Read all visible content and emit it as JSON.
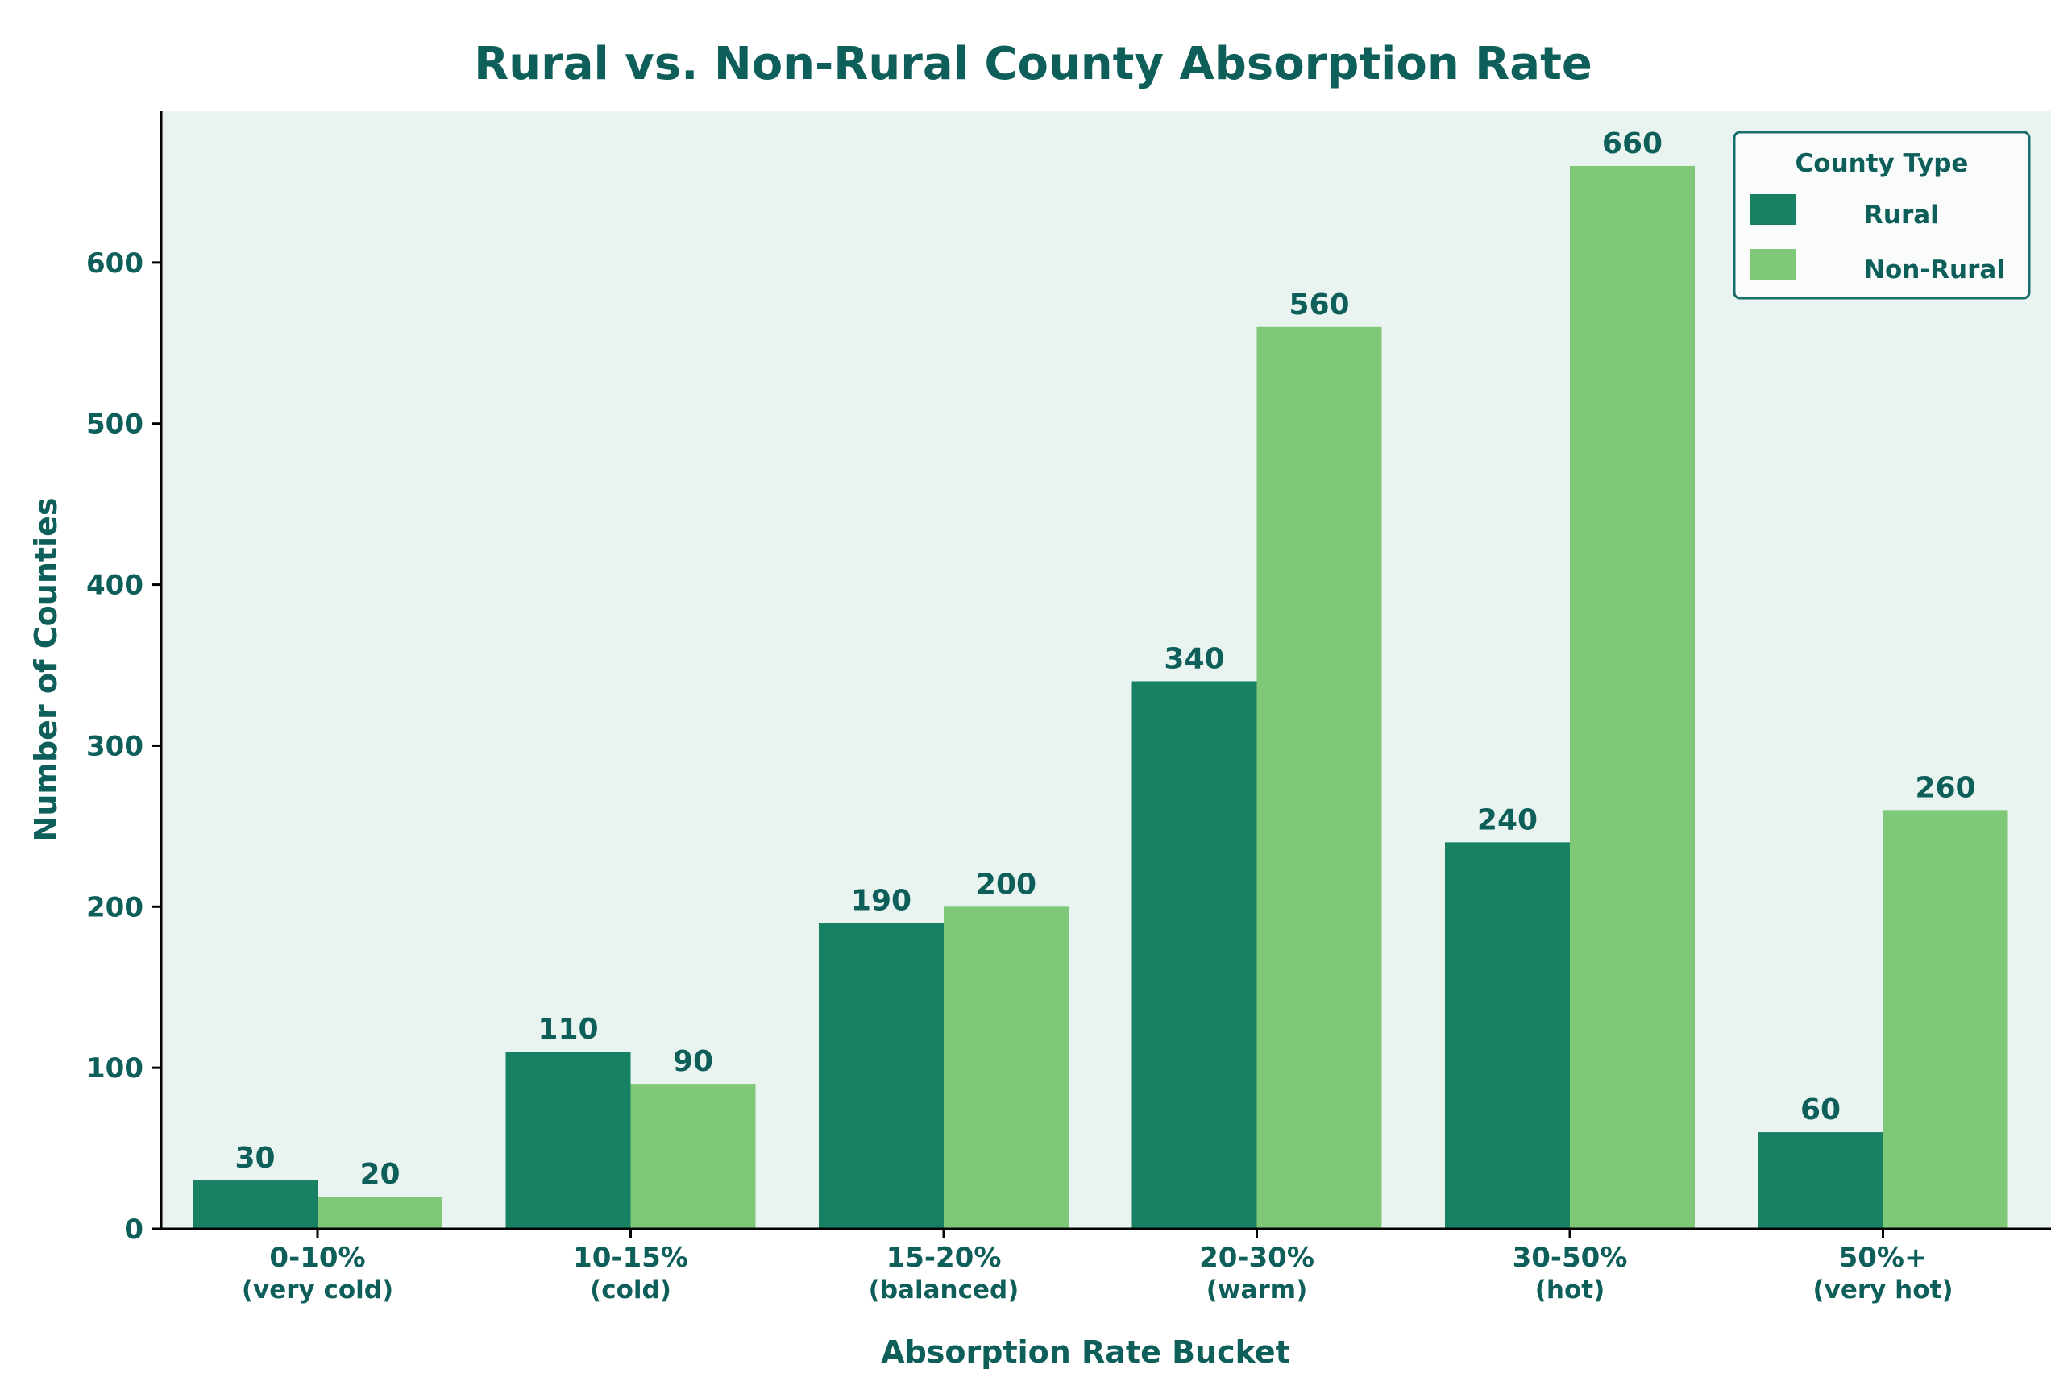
{
  "colors": {
    "text": "#0e5e5a",
    "plot_background": "#e9f4f0",
    "axis": "#000000",
    "rural": "#188063",
    "non_rural": "#7fc877",
    "legend_border": "#1a6e6a",
    "legend_background": "#f9fcfb"
  },
  "chart_data": {
    "type": "bar",
    "title": "Rural vs. Non-Rural County Absorption Rate",
    "xlabel": "Absorption Rate Bucket",
    "ylabel": "Number of Counties",
    "categories": [
      "0-10%",
      "10-15%",
      "15-20%",
      "20-30%",
      "30-50%",
      "50%+"
    ],
    "category_subtitles": [
      "(very cold)",
      "(cold)",
      "(balanced)",
      "(warm)",
      "(hot)",
      "(very hot)"
    ],
    "series": [
      {
        "name": "Rural",
        "values": [
          30,
          110,
          190,
          340,
          240,
          60
        ],
        "color": "#188063"
      },
      {
        "name": "Non-Rural",
        "values": [
          20,
          90,
          200,
          560,
          660,
          260
        ],
        "color": "#7fc877"
      }
    ],
    "yticks": [
      0,
      100,
      200,
      300,
      400,
      500,
      600
    ],
    "ylim": [
      0,
      694
    ],
    "grid": false,
    "legend": {
      "title": "County Type",
      "position": "top-right"
    }
  }
}
